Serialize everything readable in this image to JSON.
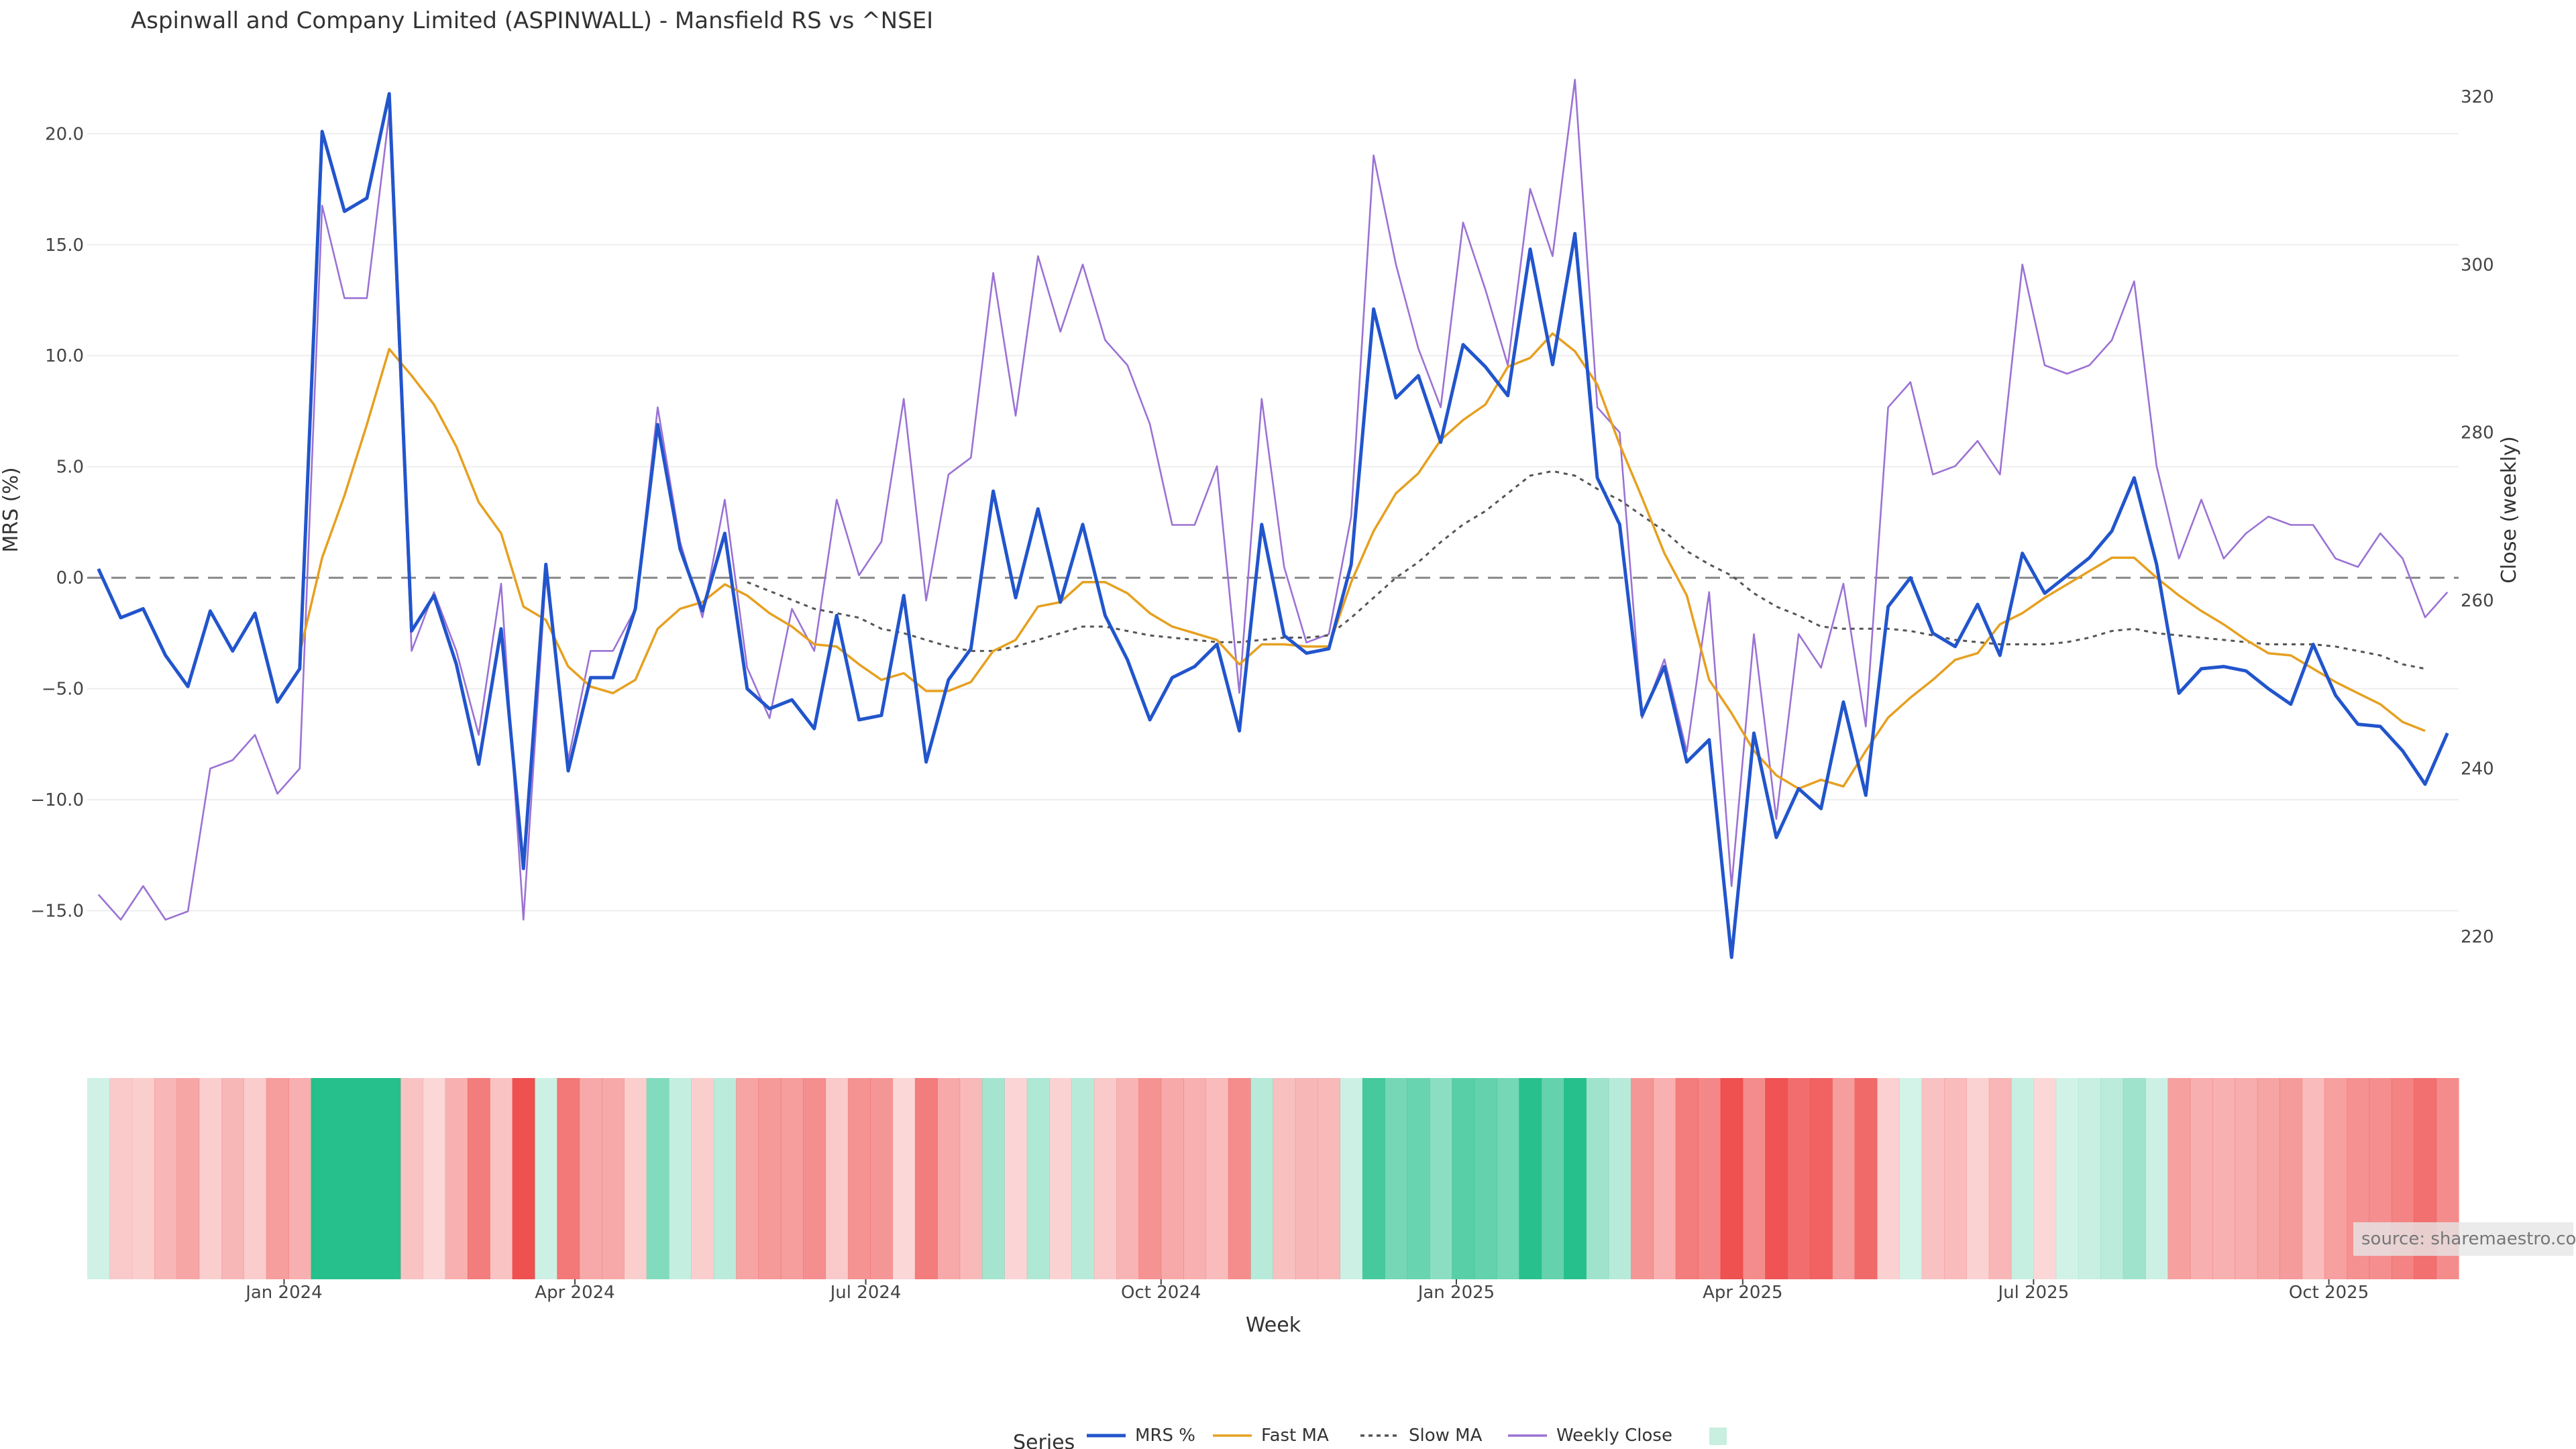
{
  "chart_data": {
    "type": "line",
    "title": "Aspinwall and Company Limited (ASPINWALL) - Mansfield RS vs ^NSEI",
    "ylabel": "MRS (%)",
    "y2label": "Close (weekly)",
    "xlabel": "Week",
    "ylim": [
      -19,
      23
    ],
    "yticks": [
      -15,
      -10,
      -5,
      0,
      5,
      10,
      15,
      20
    ],
    "ytick_labels": [
      "−15.0",
      "−10.0",
      "−5.0",
      "0.0",
      "5.0",
      "10.0",
      "15.0",
      "20.0"
    ],
    "y2lim": [
      212.5,
      323.5
    ],
    "y2ticks": [
      220,
      240,
      260,
      280,
      300,
      320
    ],
    "xticks": [
      {
        "label": "Jan 2024",
        "index": 8.8
      },
      {
        "label": "Apr 2024",
        "index": 21.8
      },
      {
        "label": "Jul 2024",
        "index": 34.8
      },
      {
        "label": "Oct 2024",
        "index": 48
      },
      {
        "label": "Jan 2025",
        "index": 61.2
      },
      {
        "label": "Apr 2025",
        "index": 74
      },
      {
        "label": "Jul 2025",
        "index": 87
      },
      {
        "label": "Oct 2025",
        "index": 100.2
      }
    ],
    "weeks_count": 106,
    "reference_line": 0,
    "legend": {
      "title": "Series",
      "placement": "bottom-center",
      "items": [
        {
          "name": "MRS %",
          "color": "#2255cc",
          "style": "solid"
        },
        {
          "name": "Fast MA",
          "color": "#e6a020",
          "style": "solid"
        },
        {
          "name": "Slow MA",
          "color": "#555555",
          "style": "dotted"
        },
        {
          "name": "Weekly Close",
          "color": "#9b72d4",
          "style": "solid"
        },
        {
          "name": "",
          "color": "#c8efe0",
          "style": "swatch"
        }
      ]
    },
    "series": [
      {
        "name": "MRS %",
        "axis": "left",
        "color": "#2255cc",
        "values": [
          0.4,
          -1.8,
          -1.4,
          -3.5,
          -4.9,
          -1.5,
          -3.3,
          -1.6,
          -5.6,
          -4.1,
          20.1,
          16.5,
          17.1,
          21.8,
          -2.4,
          -0.8,
          -3.9,
          -8.4,
          -2.3,
          -13.1,
          0.6,
          -8.7,
          -4.5,
          -4.5,
          -1.4,
          6.9,
          1.3,
          -1.5,
          2.0,
          -5.0,
          -5.9,
          -5.5,
          -6.8,
          -1.7,
          -6.4,
          -6.2,
          -0.8,
          -8.3,
          -4.6,
          -3.2,
          3.9,
          -0.9,
          3.1,
          -1.1,
          2.4,
          -1.7,
          -3.7,
          -6.4,
          -4.5,
          -4.0,
          -3.0,
          -6.9,
          2.4,
          -2.6,
          -3.4,
          -3.2,
          0.6,
          12.1,
          8.1,
          9.1,
          6.1,
          10.5,
          9.5,
          8.2,
          14.8,
          9.6,
          15.5,
          4.5,
          2.4,
          -6.2,
          -4.0,
          -8.3,
          -7.3,
          -17.1,
          -7.0,
          -11.7,
          -9.5,
          -10.4,
          -5.6,
          -9.8,
          -1.3,
          0.0,
          -2.5,
          -3.1,
          -1.2,
          -3.5,
          1.1,
          -0.7,
          0.1,
          0.9,
          2.1,
          4.5,
          0.6,
          -5.2,
          -4.1,
          -4.0,
          -4.2,
          -5.0,
          -5.7,
          -3.0,
          -5.3,
          -6.6,
          -6.7,
          -7.8,
          -9.3,
          -7.0
        ]
      },
      {
        "name": "Fast MA",
        "axis": "left",
        "color": "#e6a020",
        "values": [
          null,
          null,
          null,
          null,
          null,
          null,
          null,
          null,
          null,
          -3.4,
          0.9,
          3.7,
          6.9,
          10.3,
          9.1,
          7.8,
          5.9,
          3.4,
          2.0,
          -1.3,
          -1.9,
          -4.0,
          -4.9,
          -5.2,
          -4.6,
          -2.3,
          -1.4,
          -1.1,
          -0.3,
          -0.8,
          -1.6,
          -2.2,
          -3.0,
          -3.1,
          -3.9,
          -4.6,
          -4.3,
          -5.1,
          -5.1,
          -4.7,
          -3.3,
          -2.8,
          -1.3,
          -1.1,
          -0.2,
          -0.2,
          -0.7,
          -1.6,
          -2.2,
          -2.5,
          -2.8,
          -3.9,
          -3.0,
          -3.0,
          -3.1,
          -3.1,
          -0.2,
          2.1,
          3.8,
          4.7,
          6.2,
          7.1,
          7.8,
          9.5,
          9.9,
          11.0,
          10.2,
          8.7,
          6.0,
          3.6,
          1.1,
          -0.8,
          -4.6,
          -6.1,
          -7.8,
          -8.9,
          -9.5,
          -9.1,
          -9.4,
          -7.8,
          -6.3,
          -5.4,
          -4.6,
          -3.7,
          -3.4,
          -2.1,
          -1.6,
          -0.9,
          -0.3,
          0.3,
          0.9,
          0.9,
          0.0,
          -0.8,
          -1.5,
          -2.1,
          -2.8,
          -3.4,
          -3.5,
          -4.1,
          -4.7,
          -5.2,
          -5.7,
          -6.5,
          -6.9
        ]
      },
      {
        "name": "Slow MA",
        "axis": "left",
        "color": "#555555",
        "values": [
          null,
          null,
          null,
          null,
          null,
          null,
          null,
          null,
          null,
          null,
          null,
          null,
          null,
          null,
          null,
          null,
          null,
          null,
          null,
          null,
          null,
          null,
          null,
          null,
          null,
          null,
          null,
          null,
          null,
          -0.2,
          -0.6,
          -1.0,
          -1.4,
          -1.6,
          -1.8,
          -2.3,
          -2.5,
          -2.8,
          -3.1,
          -3.3,
          -3.3,
          -3.1,
          -2.8,
          -2.5,
          -2.2,
          -2.2,
          -2.4,
          -2.6,
          -2.7,
          -2.8,
          -2.9,
          -2.9,
          -2.8,
          -2.7,
          -2.7,
          -2.6,
          -1.8,
          -0.9,
          0.0,
          0.7,
          1.6,
          2.4,
          3.0,
          3.8,
          4.6,
          4.8,
          4.6,
          4.0,
          3.5,
          2.8,
          2.1,
          1.2,
          0.6,
          0.1,
          -0.7,
          -1.3,
          -1.7,
          -2.2,
          -2.3,
          -2.3,
          -2.3,
          -2.4,
          -2.6,
          -2.8,
          -2.9,
          -3.0,
          -3.0,
          -3.0,
          -2.9,
          -2.7,
          -2.4,
          -2.3,
          -2.5,
          -2.6,
          -2.7,
          -2.8,
          -2.9,
          -3.0,
          -3.0,
          -3.0,
          -3.1,
          -3.3,
          -3.5,
          -3.9,
          -4.1
        ]
      },
      {
        "name": "Weekly Close",
        "axis": "right",
        "color": "#9b72d4",
        "values": [
          225,
          222,
          226,
          222,
          223,
          240,
          241,
          244,
          237,
          240,
          307,
          296,
          296,
          318,
          254,
          261,
          254,
          244,
          262,
          222,
          263,
          241,
          254,
          254,
          259,
          283,
          267,
          258,
          272,
          252,
          246,
          259,
          254,
          272,
          263,
          267,
          284,
          260,
          275,
          277,
          299,
          282,
          301,
          292,
          300,
          291,
          288,
          281,
          269,
          269,
          276,
          249,
          284,
          264,
          255,
          256,
          270,
          313,
          300,
          290,
          283,
          305,
          297,
          288,
          309,
          301,
          322,
          283,
          280,
          246,
          253,
          242,
          261,
          226,
          256,
          234,
          256,
          252,
          262,
          245,
          283,
          286,
          275,
          276,
          279,
          275,
          300,
          288,
          287,
          288,
          291,
          298,
          276,
          265,
          272,
          265,
          268,
          270,
          269,
          269,
          265,
          264,
          268,
          265,
          258,
          261
        ]
      }
    ],
    "heatmap_band": {
      "description_of_encoding": "per-week colour strip following MRS sign",
      "positive_color_strong": "#25c08c",
      "negative_color_strong": "#ef5050",
      "source_series": "MRS %"
    },
    "source_note": "source: sharemaestro.com"
  }
}
